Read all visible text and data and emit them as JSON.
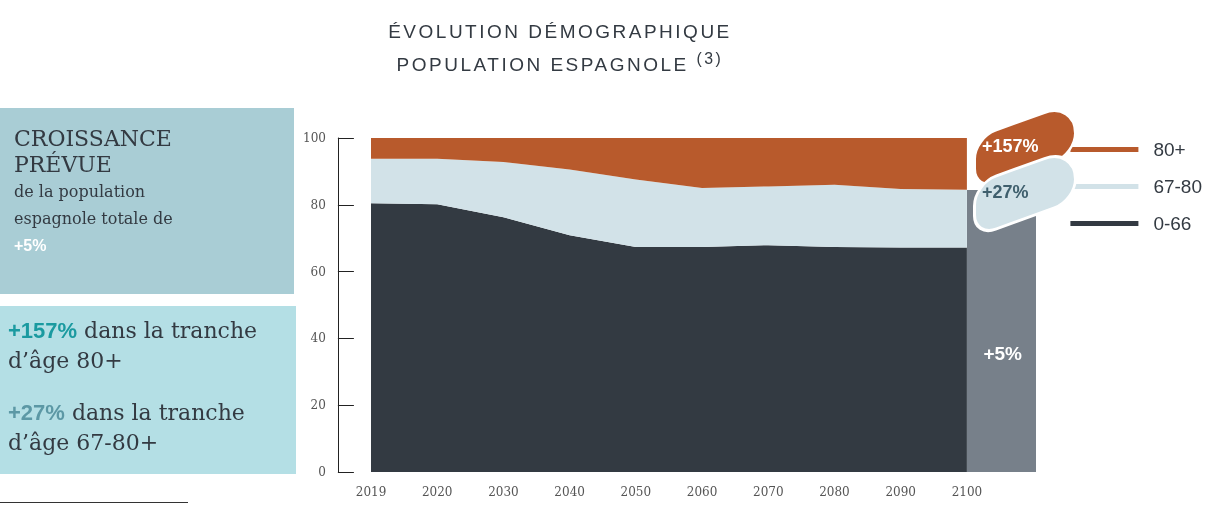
{
  "chart_data": {
    "type": "area",
    "stacked": true,
    "title": "ÉVOLUTION DÉMOGRAPHIQUE\nPOPULATION ESPAGNOLE $^{(3)}$",
    "categories": [
      "2019",
      "2020",
      "2030",
      "2040",
      "2050",
      "2060",
      "2070",
      "2080",
      "2090",
      "2100"
    ],
    "series": [
      {
        "name": "0-66",
        "color": "#333a42",
        "values": [
          80.5,
          80.2,
          76.3,
          70.9,
          67.4,
          67.4,
          67.9,
          67.4,
          67.2,
          67.2
        ]
      },
      {
        "name": "67-80",
        "color": "#d2e2e8",
        "values": [
          13.3,
          13.6,
          16.5,
          19.7,
          20.2,
          17.6,
          17.6,
          18.6,
          17.5,
          17.3
        ]
      },
      {
        "name": "80+",
        "color": "#b85a2c",
        "values": [
          6.2,
          6.2,
          7.2,
          9.4,
          12.4,
          15.0,
          14.5,
          14.0,
          15.3,
          15.5
        ]
      }
    ],
    "ylim": [
      0,
      100
    ],
    "yticks": [
      0,
      20,
      40,
      60,
      80,
      100
    ],
    "grid": false,
    "legend": "right",
    "annotations": [
      "CROISSANCE PRÉVUE",
      "de la population espagnole totale de +5%",
      "+157% dans la tranche d’âge 80+",
      "+27% dans la tranche d’âge 67-80+",
      {
        "text": "+157%",
        "x": "2100",
        "y": 92
      },
      {
        "text": "+27%",
        "x": "2100",
        "y": 78
      },
      {
        "text": "+5%",
        "x": "2100",
        "y": 35
      }
    ]
  }
}
